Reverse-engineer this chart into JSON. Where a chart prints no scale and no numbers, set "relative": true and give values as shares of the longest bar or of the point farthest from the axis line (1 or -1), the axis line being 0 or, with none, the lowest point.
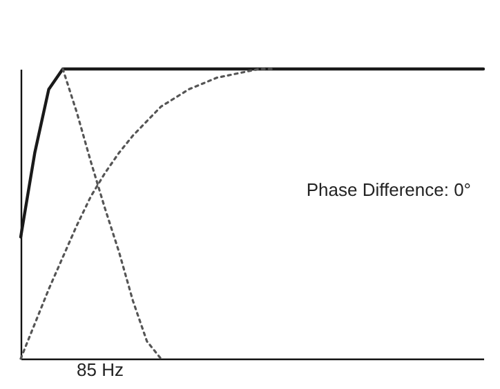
{
  "chart_data": {
    "type": "line",
    "relative": true,
    "xlabel": "85 Hz",
    "tick_labels": false,
    "categories": [
      null,
      null,
      null,
      null,
      null,
      null,
      null,
      null,
      null,
      null,
      null,
      null,
      null,
      null,
      null,
      null,
      null,
      null,
      null,
      null,
      null,
      null,
      null,
      null,
      null,
      null,
      null,
      null,
      null,
      null,
      null,
      null,
      null,
      null
    ],
    "series": [
      {
        "color": "#1a1a1a",
        "line_style": "solid",
        "values": [
          0.42,
          0.71,
          0.93,
          1,
          1,
          1,
          1,
          1,
          1,
          1,
          1,
          1,
          1,
          1,
          1,
          1,
          1,
          1,
          1,
          1,
          1,
          1,
          1,
          1,
          1,
          1,
          1,
          1,
          1,
          1,
          1,
          1,
          1,
          1
        ]
      },
      {
        "color": "#555555",
        "line_style": "dotted",
        "values": [
          null,
          null,
          null,
          1,
          0.85,
          0.68,
          0.52,
          0.37,
          0.2,
          0.06,
          0,
          null,
          null,
          null,
          null,
          null,
          null,
          null,
          null,
          null,
          null,
          null,
          null,
          null,
          null,
          null,
          null,
          null,
          null,
          null,
          null,
          null,
          null,
          null
        ]
      },
      {
        "color": "#555555",
        "line_style": "dotted",
        "values": [
          0,
          0.12,
          0.24,
          0.35,
          0.46,
          0.56,
          0.64,
          0.71,
          0.77,
          0.82,
          0.87,
          0.9,
          0.93,
          0.95,
          0.97,
          0.98,
          0.99,
          1,
          1,
          null,
          null,
          null,
          null,
          null,
          null,
          null,
          null,
          null,
          null,
          null,
          null,
          null,
          null,
          null
        ]
      }
    ],
    "annotations": [
      "Phase Difference: 0°"
    ]
  }
}
